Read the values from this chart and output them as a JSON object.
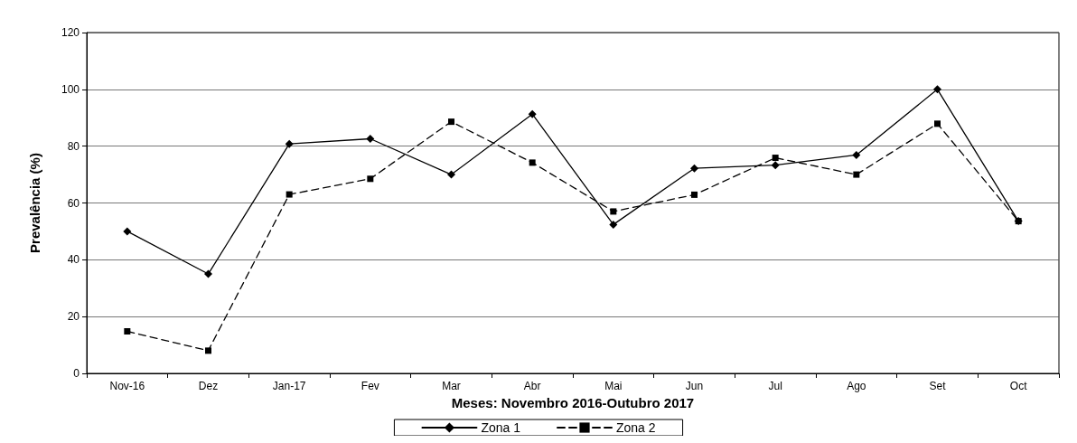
{
  "chart_data": {
    "type": "line",
    "xlabel": "Meses: Novembro 2016-Outubro 2017",
    "ylabel": "Prevalência (%)",
    "categories": [
      "Nov-16",
      "Dez",
      "Jan-17",
      "Fev",
      "Mar",
      "Abr",
      "Mai",
      "Jun",
      "Jul",
      "Ago",
      "Set",
      "Oct"
    ],
    "series": [
      {
        "name": "Zona 1",
        "color": "#000000",
        "marker": "diamond",
        "line_style": "solid",
        "values": [
          50,
          35,
          80.8,
          82.6,
          70,
          91.3,
          52.4,
          72.2,
          73.3,
          76.9,
          100,
          53.6
        ]
      },
      {
        "name": "Zona 2",
        "color": "#000000",
        "marker": "square",
        "line_style": "dashed",
        "values": [
          14.8,
          8,
          63,
          68.5,
          88.6,
          74.2,
          57,
          62.9,
          75.9,
          70,
          87.9,
          53.6
        ]
      }
    ],
    "ylim": [
      0,
      120
    ],
    "yticks": [
      0,
      20,
      40,
      60,
      80,
      100,
      120
    ],
    "grid": "y",
    "legend": "bottom"
  }
}
